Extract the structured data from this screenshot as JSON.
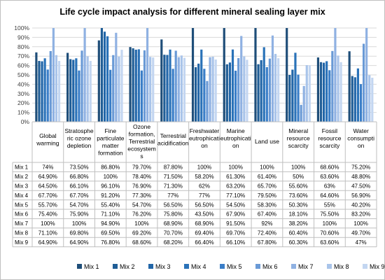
{
  "chart_data": {
    "type": "bar",
    "title": "Life cycle impact analysis for different mineral sealing layer mix",
    "ylim": [
      0,
      100
    ],
    "yticks": [
      "0%",
      "10%",
      "20%",
      "30%",
      "40%",
      "50%",
      "60%",
      "70%",
      "80%",
      "90%",
      "100%"
    ],
    "grid": true,
    "legend_position": "bottom",
    "categories": [
      [
        "Global",
        "warming"
      ],
      [
        "Stratosphe",
        "ric ozone",
        "depletion"
      ],
      [
        "Fine",
        "particulate",
        "matter",
        "formation"
      ],
      [
        "Ozone",
        "formation,",
        "Terrestrial",
        "ecosystem",
        "s"
      ],
      [
        "Terrestrial",
        "acidification"
      ],
      [
        "Freshwater",
        "eutrophicati",
        "on"
      ],
      [
        "Marine",
        "eutrophicati",
        "on"
      ],
      [
        "Land use"
      ],
      [
        "Mineral",
        "resource",
        "scarcity"
      ],
      [
        "Fossil",
        "resource",
        "scarcity"
      ],
      [
        "Water",
        "consumpti",
        "on"
      ]
    ],
    "series": [
      {
        "name": "Mix 1",
        "color": "#1f4e79",
        "values": [
          74,
          73.5,
          86.8,
          79.7,
          87.8,
          100,
          100,
          100,
          100,
          68.6,
          75.2
        ],
        "labels": [
          "74%",
          "73.50%",
          "86.80%",
          "79.70%",
          "87.80%",
          "100%",
          "100%",
          "100%",
          "100%",
          "68.60%",
          "75.20%"
        ]
      },
      {
        "name": "Mix 2",
        "color": "#1f5d96",
        "values": [
          64.9,
          66.8,
          100,
          78.4,
          71.5,
          58.2,
          61.3,
          61.4,
          50,
          63.6,
          48.8
        ],
        "labels": [
          "64.90%",
          "66.80%",
          "100%",
          "78.40%",
          "71.50%",
          "58.20%",
          "61.30%",
          "61.40%",
          "50%",
          "63.60%",
          "48.80%"
        ]
      },
      {
        "name": "Mix 3",
        "color": "#2266a8",
        "values": [
          64.5,
          66.1,
          96.1,
          76.9,
          71.3,
          62,
          63.2,
          65.7,
          55.6,
          63,
          47.5
        ],
        "labels": [
          "64.50%",
          "66.10%",
          "96.10%",
          "76.90%",
          "71.30%",
          "62%",
          "63.20%",
          "65.70%",
          "55.60%",
          "63%",
          "47.50%"
        ]
      },
      {
        "name": "Mix 4",
        "color": "#2a72b8",
        "values": [
          67.7,
          67.7,
          91.2,
          77.3,
          77,
          77,
          77.1,
          79.5,
          73.6,
          64.6,
          56.9
        ],
        "labels": [
          "67.70%",
          "67.70%",
          "91.20%",
          "77.30%",
          "77%",
          "77%",
          "77.10%",
          "79.50%",
          "73.60%",
          "64.60%",
          "56.90%"
        ]
      },
      {
        "name": "Mix 5",
        "color": "#3a7ec8",
        "values": [
          55.7,
          54.7,
          55.4,
          54.7,
          56.5,
          56.5,
          54.5,
          58.3,
          50.3,
          55,
          40.2
        ],
        "labels": [
          "55.70%",
          "54.70%",
          "55.40%",
          "54.70%",
          "56.50%",
          "56.50%",
          "54.50%",
          "58.30%",
          "50.30%",
          "55%",
          "40.20%"
        ]
      },
      {
        "name": "Mix 6",
        "color": "#6a9ad6",
        "values": [
          75.4,
          75.9,
          71.1,
          76.2,
          75.8,
          43.5,
          67.9,
          67.4,
          18.1,
          75.5,
          83.2
        ],
        "labels": [
          "75.40%",
          "75.90%",
          "71.10%",
          "76.20%",
          "75.80%",
          "43.50%",
          "67.90%",
          "67.40%",
          "18.10%",
          "75.50%",
          "83.20%"
        ]
      },
      {
        "name": "Mix 7",
        "color": "#8fb1e2",
        "values": [
          100,
          100,
          94.9,
          100,
          68.9,
          68.9,
          91.5,
          92,
          38.2,
          100,
          100
        ],
        "labels": [
          "100%",
          "100%",
          "94.90%",
          "100%",
          "68.90%",
          "68.90%",
          "91.50%",
          "92%",
          "38.20%",
          "100%",
          "100%"
        ]
      },
      {
        "name": "Mix 8",
        "color": "#a9c4ea",
        "values": [
          71.1,
          69.8,
          69.5,
          69.2,
          70.7,
          69.4,
          69.7,
          72.4,
          60.4,
          70.6,
          49.7
        ],
        "labels": [
          "71.10%",
          "69.80%",
          "69.50%",
          "69.20%",
          "70.70%",
          "69.40%",
          "69.70%",
          "72.40%",
          "60.40%",
          "70.60%",
          "49.70%"
        ]
      },
      {
        "name": "Mix 9",
        "color": "#c3d6f1",
        "values": [
          64.9,
          64.9,
          76.8,
          68.6,
          68.2,
          66.4,
          66.1,
          67.8,
          60.3,
          63.6,
          47
        ],
        "labels": [
          "64.90%",
          "64.90%",
          "76.80%",
          "68.60%",
          "68.20%",
          "66.40%",
          "66.10%",
          "67.80%",
          "60.30%",
          "63.60%",
          "47%"
        ]
      }
    ]
  }
}
